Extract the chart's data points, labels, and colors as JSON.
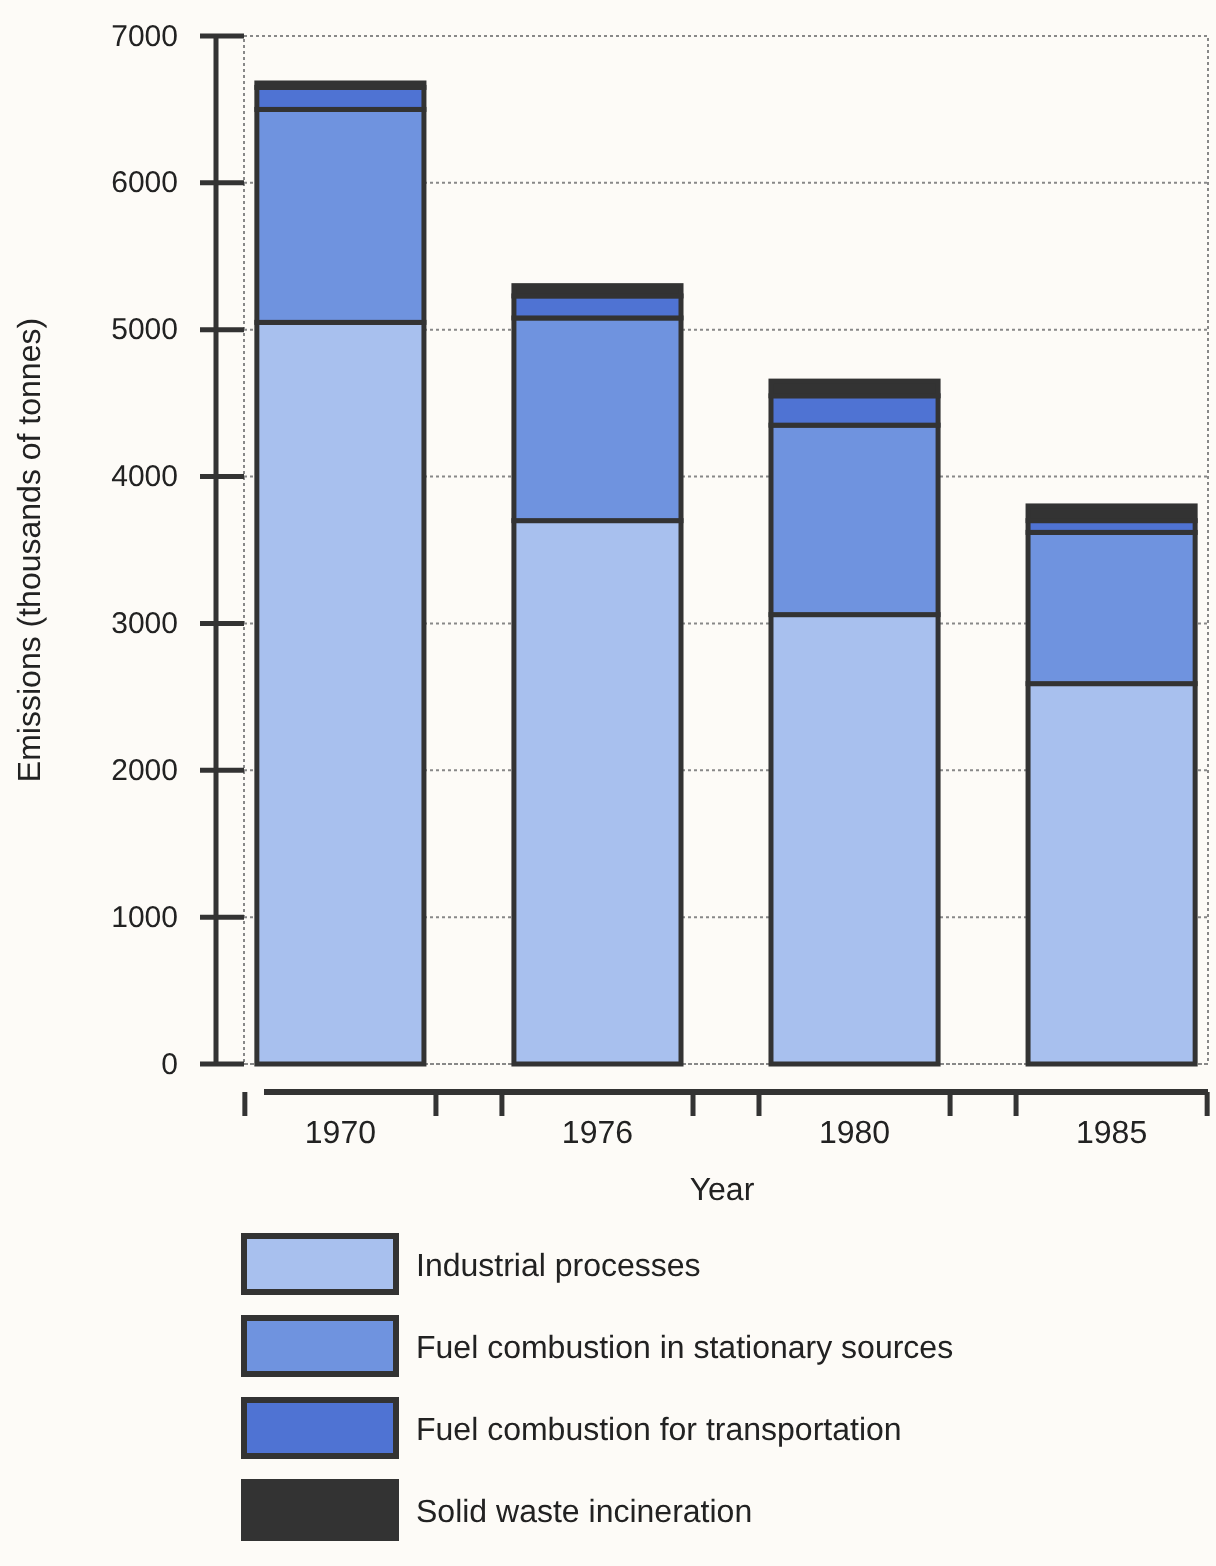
{
  "chart_data": {
    "type": "bar",
    "stacked": true,
    "xlabel": "Year",
    "ylabel": "Emissions (thousands of tonnes)",
    "categories": [
      "1970",
      "1976",
      "1980",
      "1985"
    ],
    "series": [
      {
        "name": "Industrial processes",
        "color": "#a8c0ee",
        "values": [
          5050,
          3700,
          3060,
          2590
        ]
      },
      {
        "name": "Fuel combustion in stationary sources",
        "color": "#6f93df",
        "values": [
          1450,
          1380,
          1290,
          1030
        ]
      },
      {
        "name": "Fuel combustion for transportation",
        "color": "#4f73d3",
        "values": [
          150,
          150,
          200,
          80
        ]
      },
      {
        "name": "Solid waste incineration",
        "color": "#333333",
        "values": [
          30,
          70,
          100,
          100
        ]
      }
    ],
    "ylim": [
      0,
      7000
    ],
    "yticks": [
      0,
      1000,
      2000,
      3000,
      4000,
      5000,
      6000,
      7000
    ],
    "grid": "y",
    "legend": "bottom"
  }
}
